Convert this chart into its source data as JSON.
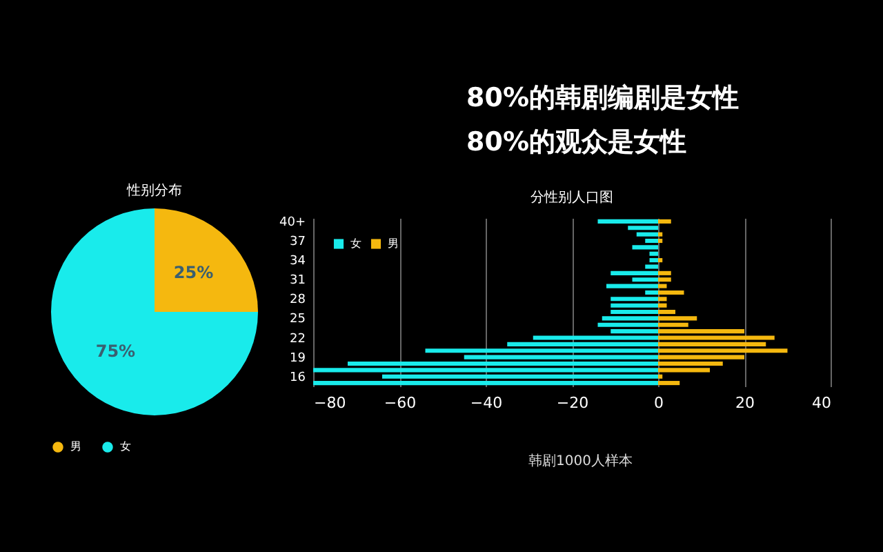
{
  "chart_data": [
    {
      "type": "pie",
      "title": "性别分布",
      "categories": [
        "男",
        "女"
      ],
      "values": [
        25,
        75
      ],
      "colors": [
        "#f5b80f",
        "#19ebeb"
      ],
      "value_labels": [
        "25%",
        "75%"
      ],
      "legend": "bottom"
    },
    {
      "type": "bar",
      "orientation": "horizontal",
      "title": "分性别人口图",
      "annotations": [
        "80%的韩剧编剧是女性",
        "80%的观众是女性",
        "韩剧1000人样本"
      ],
      "categories": [
        "40+",
        null,
        null,
        "37",
        null,
        null,
        "34",
        null,
        null,
        "31",
        null,
        null,
        "28",
        null,
        null,
        "25",
        null,
        null,
        "22",
        null,
        null,
        "19",
        null,
        null,
        "16",
        null
      ],
      "series": [
        {
          "name": "女",
          "color": "#19ebeb",
          "values": [
            -14,
            -7,
            -5,
            -3,
            -6,
            -2,
            -2,
            -3,
            -11,
            -6,
            -12,
            -3,
            -11,
            -11,
            -11,
            -13,
            -14,
            -11,
            -29,
            -35,
            -54,
            -45,
            -72,
            -80,
            -64,
            -80
          ]
        },
        {
          "name": "男",
          "color": "#f5b80f",
          "values": [
            3,
            0,
            1,
            1,
            0,
            0,
            1,
            0,
            3,
            3,
            2,
            6,
            2,
            2,
            4,
            9,
            7,
            20,
            27,
            25,
            30,
            20,
            15,
            12,
            1,
            5
          ]
        }
      ],
      "xlim": [
        -80,
        40
      ],
      "xticks": [
        -80,
        -60,
        -40,
        -20,
        0,
        20,
        40
      ],
      "grid": "x",
      "legend": "top left",
      "stacked": true
    }
  ]
}
